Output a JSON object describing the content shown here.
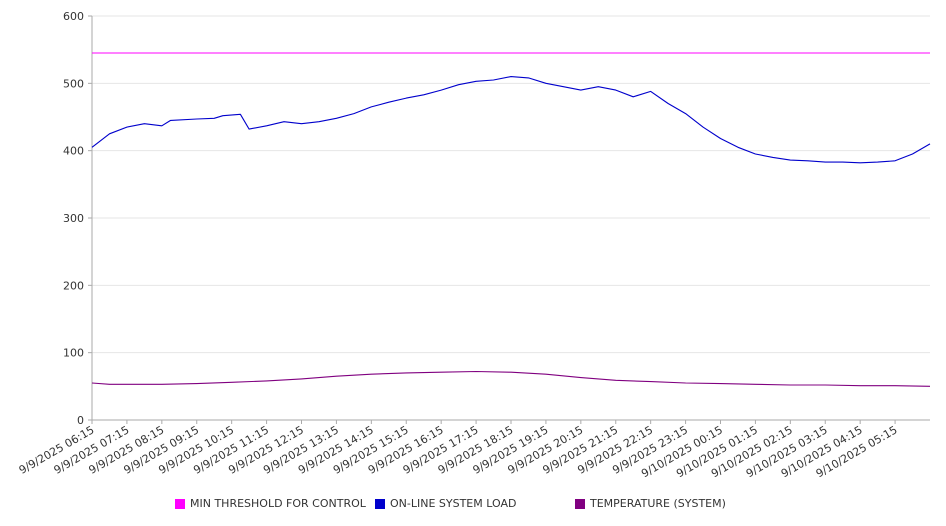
{
  "chart_data": {
    "type": "line",
    "title": "",
    "xlabel": "",
    "ylabel": "",
    "ylim": [
      0,
      600
    ],
    "y_ticks": [
      0,
      100,
      200,
      300,
      400,
      500,
      600
    ],
    "x_tick_labels": [
      "9/9/2025 06:15",
      "9/9/2025 07:15",
      "9/9/2025 08:15",
      "9/9/2025 09:15",
      "9/9/2025 10:15",
      "9/9/2025 11:15",
      "9/9/2025 12:15",
      "9/9/2025 13:15",
      "9/9/2025 14:15",
      "9/9/2025 15:15",
      "9/9/2025 16:15",
      "9/9/2025 17:15",
      "9/9/2025 18:15",
      "9/9/2025 19:15",
      "9/9/2025 20:15",
      "9/9/2025 21:15",
      "9/9/2025 22:15",
      "9/9/2025 23:15",
      "9/10/2025 00:15",
      "9/10/2025 01:15",
      "9/10/2025 02:15",
      "9/10/2025 03:15",
      "9/10/2025 04:15",
      "9/10/2025 05:15"
    ],
    "grid": true,
    "legend_position": "bottom",
    "series": [
      {
        "name": "MIN THRESHOLD FOR CONTROL",
        "color": "#ff00ff",
        "points": [
          [
            "9/9/2025 06:15",
            545
          ],
          [
            "9/10/2025 06:15",
            545
          ]
        ]
      },
      {
        "name": "ON-LINE SYSTEM LOAD",
        "color": "#0000cc",
        "points": [
          [
            "9/9/2025 06:15",
            405
          ],
          [
            "9/9/2025 06:45",
            425
          ],
          [
            "9/9/2025 07:15",
            435
          ],
          [
            "9/9/2025 07:45",
            440
          ],
          [
            "9/9/2025 08:15",
            437
          ],
          [
            "9/9/2025 08:30",
            445
          ],
          [
            "9/9/2025 09:15",
            447
          ],
          [
            "9/9/2025 09:45",
            448
          ],
          [
            "9/9/2025 10:00",
            452
          ],
          [
            "9/9/2025 10:30",
            454
          ],
          [
            "9/9/2025 10:45",
            432
          ],
          [
            "9/9/2025 11:15",
            437
          ],
          [
            "9/9/2025 11:45",
            443
          ],
          [
            "9/9/2025 12:15",
            440
          ],
          [
            "9/9/2025 12:45",
            443
          ],
          [
            "9/9/2025 13:15",
            448
          ],
          [
            "9/9/2025 13:45",
            455
          ],
          [
            "9/9/2025 14:15",
            465
          ],
          [
            "9/9/2025 14:45",
            472
          ],
          [
            "9/9/2025 15:15",
            478
          ],
          [
            "9/9/2025 15:45",
            483
          ],
          [
            "9/9/2025 16:15",
            490
          ],
          [
            "9/9/2025 16:45",
            498
          ],
          [
            "9/9/2025 17:15",
            503
          ],
          [
            "9/9/2025 17:45",
            505
          ],
          [
            "9/9/2025 18:15",
            510
          ],
          [
            "9/9/2025 18:45",
            508
          ],
          [
            "9/9/2025 19:15",
            500
          ],
          [
            "9/9/2025 19:45",
            495
          ],
          [
            "9/9/2025 20:15",
            490
          ],
          [
            "9/9/2025 20:45",
            495
          ],
          [
            "9/9/2025 21:15",
            490
          ],
          [
            "9/9/2025 21:45",
            480
          ],
          [
            "9/9/2025 22:15",
            488
          ],
          [
            "9/9/2025 22:45",
            470
          ],
          [
            "9/9/2025 23:15",
            455
          ],
          [
            "9/9/2025 23:45",
            435
          ],
          [
            "9/10/2025 00:15",
            418
          ],
          [
            "9/10/2025 00:45",
            405
          ],
          [
            "9/10/2025 01:15",
            395
          ],
          [
            "9/10/2025 01:45",
            390
          ],
          [
            "9/10/2025 02:15",
            386
          ],
          [
            "9/10/2025 02:45",
            385
          ],
          [
            "9/10/2025 03:15",
            383
          ],
          [
            "9/10/2025 03:45",
            383
          ],
          [
            "9/10/2025 04:15",
            382
          ],
          [
            "9/10/2025 04:45",
            383
          ],
          [
            "9/10/2025 05:15",
            385
          ],
          [
            "9/10/2025 05:45",
            395
          ],
          [
            "9/10/2025 06:15",
            410
          ]
        ]
      },
      {
        "name": "TEMPERATURE (SYSTEM)",
        "color": "#800080",
        "points": [
          [
            "9/9/2025 06:15",
            55
          ],
          [
            "9/9/2025 06:45",
            53
          ],
          [
            "9/9/2025 07:15",
            53
          ],
          [
            "9/9/2025 08:15",
            53
          ],
          [
            "9/9/2025 09:15",
            54
          ],
          [
            "9/9/2025 10:15",
            56
          ],
          [
            "9/9/2025 11:15",
            58
          ],
          [
            "9/9/2025 12:15",
            61
          ],
          [
            "9/9/2025 13:15",
            65
          ],
          [
            "9/9/2025 14:15",
            68
          ],
          [
            "9/9/2025 15:15",
            70
          ],
          [
            "9/9/2025 16:15",
            71
          ],
          [
            "9/9/2025 17:15",
            72
          ],
          [
            "9/9/2025 18:15",
            71
          ],
          [
            "9/9/2025 19:15",
            68
          ],
          [
            "9/9/2025 20:15",
            63
          ],
          [
            "9/9/2025 21:15",
            59
          ],
          [
            "9/9/2025 22:15",
            57
          ],
          [
            "9/9/2025 23:15",
            55
          ],
          [
            "9/10/2025 00:15",
            54
          ],
          [
            "9/10/2025 01:15",
            53
          ],
          [
            "9/10/2025 02:15",
            52
          ],
          [
            "9/10/2025 03:15",
            52
          ],
          [
            "9/10/2025 04:15",
            51
          ],
          [
            "9/10/2025 05:15",
            51
          ],
          [
            "9/10/2025 06:15",
            50
          ]
        ]
      }
    ]
  }
}
